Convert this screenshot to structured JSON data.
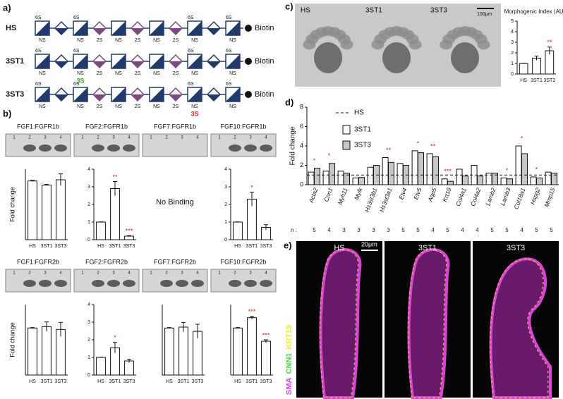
{
  "panel_a": {
    "label": "a)",
    "end": "Biotin",
    "rows": [
      {
        "name": "HS",
        "units": [
          {
            "shape": "square",
            "top": "6S",
            "bottom": "NS"
          },
          {
            "shape": "diamond",
            "color": "#1f3a6b"
          },
          {
            "shape": "square",
            "top": "6S",
            "bottom": "NS"
          },
          {
            "shape": "diamond",
            "color": "#7a4a82",
            "bottom": "2S"
          },
          {
            "shape": "square",
            "bottom": "NS"
          },
          {
            "shape": "diamond",
            "color": "#7a4a82",
            "bottom": "2S"
          },
          {
            "shape": "square",
            "bottom": "NS"
          },
          {
            "shape": "diamond",
            "color": "#7a4a82",
            "bottom": "2S"
          },
          {
            "shape": "square",
            "top": "6S",
            "bottom": "NS"
          },
          {
            "shape": "diamond",
            "color": "#1f3a6b"
          },
          {
            "shape": "square",
            "top": "6S",
            "bottom": "NS"
          }
        ]
      },
      {
        "name": "3ST1",
        "units": [
          {
            "shape": "square",
            "top": "6S",
            "bottom": "NS"
          },
          {
            "shape": "diamond",
            "color": "#1f3a6b"
          },
          {
            "shape": "square",
            "top": "6S",
            "bottom": "NS",
            "extra": "3S",
            "extra_color": "#3c9a3c"
          },
          {
            "shape": "diamond",
            "color": "#7a4a82",
            "bottom": "2S"
          },
          {
            "shape": "square",
            "bottom": "NS"
          },
          {
            "shape": "diamond",
            "color": "#7a4a82",
            "bottom": "2S"
          },
          {
            "shape": "square",
            "bottom": "NS"
          },
          {
            "shape": "diamond",
            "color": "#7a4a82",
            "bottom": "2S"
          },
          {
            "shape": "square",
            "top": "6S",
            "bottom": "NS"
          },
          {
            "shape": "diamond",
            "color": "#1f3a6b"
          },
          {
            "shape": "square",
            "top": "6S",
            "bottom": "NS"
          }
        ]
      },
      {
        "name": "3ST3",
        "units": [
          {
            "shape": "square",
            "top": "6S",
            "bottom": "NS"
          },
          {
            "shape": "diamond",
            "color": "#1f3a6b"
          },
          {
            "shape": "square",
            "top": "6S",
            "bottom": "NS"
          },
          {
            "shape": "diamond",
            "color": "#7a4a82",
            "bottom": "2S"
          },
          {
            "shape": "square",
            "bottom": "NS"
          },
          {
            "shape": "diamond",
            "color": "#7a4a82",
            "bottom": "2S"
          },
          {
            "shape": "square",
            "bottom": "NS"
          },
          {
            "shape": "diamond",
            "color": "#7a4a82",
            "bottom": "2S"
          },
          {
            "shape": "square",
            "top": "6S",
            "bottom": "NS",
            "extra": "3S",
            "extra_color": "#e02020"
          },
          {
            "shape": "diamond",
            "color": "#1f3a6b"
          },
          {
            "shape": "square",
            "top": "6S",
            "bottom": "NS"
          }
        ]
      }
    ]
  },
  "panel_b": {
    "label": "b)",
    "y_label": "Fold change",
    "lanes": [
      "1",
      "2",
      "3",
      "4"
    ],
    "charts": [
      {
        "title": "FGF1:FGFR1b",
        "categories": [
          "HS",
          "3ST1",
          "3ST3"
        ],
        "values": [
          1,
          0.93,
          1.02
        ],
        "errors": [
          0.01,
          0.01,
          0.1
        ],
        "ylim": [
          0,
          1.2
        ],
        "stars": [
          null,
          null,
          null
        ]
      },
      {
        "title": "FGF2:FGFR1b",
        "categories": [
          "HS",
          "3ST1",
          "3ST3"
        ],
        "values": [
          1,
          2.9,
          0.2
        ],
        "errors": [
          0.01,
          0.4,
          0.03
        ],
        "ylim": [
          0,
          4
        ],
        "yticks": [
          0,
          1,
          2,
          3,
          4
        ],
        "stars": [
          null,
          "**",
          "***"
        ]
      },
      {
        "title": "FGF7:FGFR1b",
        "note": "No Binding"
      },
      {
        "title": "FGF10:FGFR1b",
        "categories": [
          "HS",
          "3ST1",
          "3ST3"
        ],
        "values": [
          1,
          2.3,
          0.7
        ],
        "errors": [
          0.01,
          0.4,
          0.15
        ],
        "ylim": [
          0,
          4
        ],
        "yticks": [
          0,
          1,
          2,
          3,
          4
        ],
        "stars": [
          null,
          "*",
          null
        ]
      },
      {
        "title": "FGF1:FGFR2b",
        "categories": [
          "HS",
          "3ST1",
          "3ST3"
        ],
        "values": [
          1,
          1.03,
          0.97
        ],
        "errors": [
          0.01,
          0.1,
          0.15
        ],
        "ylim": [
          0,
          1.5
        ],
        "stars": [
          null,
          null,
          null
        ]
      },
      {
        "title": "FGF2:FGFR2b",
        "categories": [
          "HS",
          "3ST1",
          "3ST3"
        ],
        "values": [
          1,
          1.55,
          0.8
        ],
        "errors": [
          0.01,
          0.3,
          0.1
        ],
        "ylim": [
          0,
          4
        ],
        "yticks": [
          0,
          1,
          2,
          3,
          4
        ],
        "stars": [
          null,
          "*",
          null
        ]
      },
      {
        "title": "FGF7:FGFR2b",
        "categories": [
          "HS",
          "3ST1",
          "3ST3"
        ],
        "values": [
          1,
          1.02,
          0.93
        ],
        "errors": [
          0.01,
          0.1,
          0.15
        ],
        "ylim": [
          0,
          1.5
        ],
        "stars": [
          null,
          null,
          null
        ]
      },
      {
        "title": "FGF10:FGFR2b",
        "categories": [
          "HS",
          "3ST1",
          "3ST3"
        ],
        "values": [
          1,
          1.22,
          0.72
        ],
        "errors": [
          0.01,
          0.03,
          0.03
        ],
        "ylim": [
          0,
          1.5
        ],
        "stars": [
          null,
          "***",
          "***"
        ]
      }
    ]
  },
  "panel_c": {
    "label": "c)",
    "images": [
      "HS",
      "3ST1",
      "3ST3"
    ],
    "scale": "100μm",
    "chart": {
      "title": "Morphogenic Index (AU)",
      "categories": [
        "HS",
        "3ST1",
        "3ST3"
      ],
      "values": [
        1,
        1.5,
        2.2
      ],
      "errors": [
        0.02,
        0.2,
        0.35
      ],
      "ylim": [
        0,
        5
      ],
      "yticks": [
        0,
        1,
        2,
        3,
        4,
        5
      ],
      "stars": [
        null,
        null,
        "**"
      ]
    }
  },
  "panel_d": {
    "label": "d)",
    "y_label": "Fold change",
    "n_label": "n :",
    "reference": {
      "name": "HS",
      "value": 1
    },
    "categories": [
      "Acta2",
      "Cnn1",
      "Myh11",
      "Mylk",
      "Hs3st3b1",
      "Hs3st3a1",
      "Etv4",
      "Etv5",
      "Aqp5",
      "Krt19",
      "Col4a1",
      "Col4a2",
      "Lamb2",
      "Lamb3",
      "Col18a1",
      "Hspg2",
      "Mmp15"
    ],
    "n": [
      5,
      4,
      3,
      3,
      3,
      3,
      5,
      5,
      4,
      5,
      4,
      4,
      5,
      5,
      4,
      5,
      5
    ],
    "series": [
      {
        "name": "3ST1",
        "color": "#ffffff",
        "values": [
          1.3,
          1.4,
          1.4,
          0.7,
          1.8,
          2.8,
          2.2,
          3.5,
          3.2,
          0.6,
          1.6,
          2.0,
          1.2,
          0.7,
          4.0,
          0.8,
          1.3
        ]
      },
      {
        "name": "3ST3",
        "color": "#c8c8c8",
        "values": [
          1.7,
          2.2,
          1.2,
          0.75,
          2.0,
          2.3,
          2.0,
          3.3,
          2.9,
          0.35,
          0.9,
          0.9,
          1.2,
          0.6,
          3.2,
          0.7,
          1.2
        ]
      }
    ],
    "stars": [
      "*",
      "*",
      null,
      null,
      null,
      "**",
      null,
      "*",
      "**",
      "***",
      null,
      null,
      null,
      "*",
      "*",
      "*",
      null
    ],
    "ylim": [
      0,
      8
    ],
    "yticks": [
      0,
      2,
      4,
      6,
      8
    ]
  },
  "panel_e": {
    "label": "e)",
    "images": [
      "HS",
      "3ST1",
      "3ST3"
    ],
    "scale": "20μm",
    "stains": [
      {
        "name": "SMA",
        "color": "#e040e0"
      },
      {
        "name": "CNN1",
        "color": "#40e040"
      },
      {
        "name": "KRT19",
        "color": "#f0f020"
      }
    ]
  }
}
